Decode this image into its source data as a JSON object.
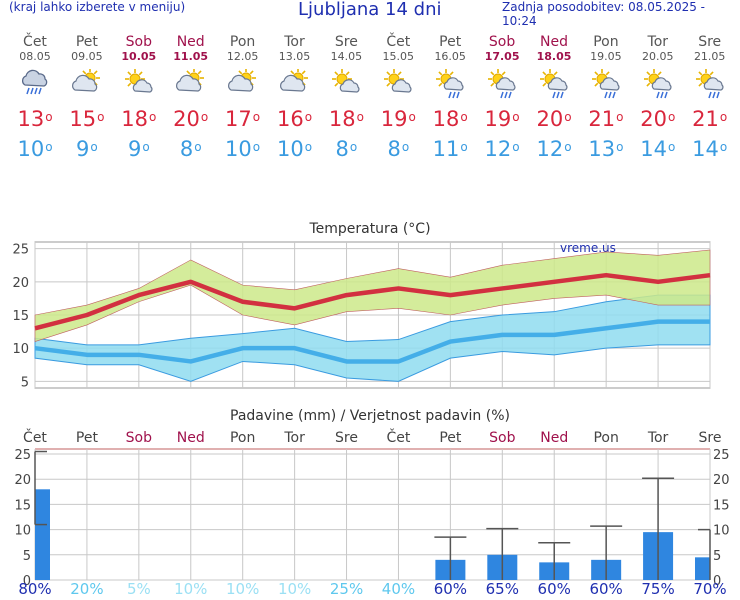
{
  "header": {
    "menu_hint": "(kraj lahko izberete v meniju)",
    "title": "Ljubljana 14 dni",
    "updated": "Zadnja posodobitev: 08.05.2025 - 10:24"
  },
  "days": [
    {
      "name": "Čet",
      "date": "08.05",
      "weekend": false,
      "icon": "rain-cloud-icon",
      "tmax": "13",
      "tmin": "10"
    },
    {
      "name": "Pet",
      "date": "09.05",
      "weekend": false,
      "icon": "partly-cloudy-icon",
      "tmax": "15",
      "tmin": "9"
    },
    {
      "name": "Sob",
      "date": "10.05",
      "weekend": true,
      "icon": "sun-cloud-icon",
      "tmax": "18",
      "tmin": "9"
    },
    {
      "name": "Ned",
      "date": "11.05",
      "weekend": true,
      "icon": "partly-cloudy-icon",
      "tmax": "20",
      "tmin": "8"
    },
    {
      "name": "Pon",
      "date": "12.05",
      "weekend": false,
      "icon": "partly-cloudy-icon",
      "tmax": "17",
      "tmin": "10"
    },
    {
      "name": "Tor",
      "date": "13.05",
      "weekend": false,
      "icon": "partly-cloudy-icon",
      "tmax": "16",
      "tmin": "10"
    },
    {
      "name": "Sre",
      "date": "14.05",
      "weekend": false,
      "icon": "sun-cloud-icon",
      "tmax": "18",
      "tmin": "8"
    },
    {
      "name": "Čet",
      "date": "15.05",
      "weekend": false,
      "icon": "sun-cloud-icon",
      "tmax": "19",
      "tmin": "8"
    },
    {
      "name": "Pet",
      "date": "16.05",
      "weekend": false,
      "icon": "sun-rain-icon",
      "tmax": "18",
      "tmin": "11"
    },
    {
      "name": "Sob",
      "date": "17.05",
      "weekend": true,
      "icon": "sun-rain-icon",
      "tmax": "19",
      "tmin": "12"
    },
    {
      "name": "Ned",
      "date": "18.05",
      "weekend": true,
      "icon": "sun-rain-icon",
      "tmax": "20",
      "tmin": "12"
    },
    {
      "name": "Pon",
      "date": "19.05",
      "weekend": false,
      "icon": "sun-rain-icon",
      "tmax": "21",
      "tmin": "13"
    },
    {
      "name": "Tor",
      "date": "20.05",
      "weekend": false,
      "icon": "sun-rain-icon",
      "tmax": "20",
      "tmin": "14"
    },
    {
      "name": "Sre",
      "date": "21.05",
      "weekend": false,
      "icon": "sun-rain-icon",
      "tmax": "21",
      "tmin": "14"
    }
  ],
  "colors": {
    "title_blue": "#1f2fb0",
    "weekend": "#a0124c",
    "max_line": "#d23040",
    "max_band": "#cde98a",
    "min_line": "#44aee8",
    "min_band": "#8fdcf0",
    "precip_bar": "#2f86e0",
    "grid": "#c8c8c8"
  },
  "chart_data": [
    {
      "type": "line",
      "title": "Temperatura (°C)",
      "watermark": "vreme.us",
      "categories": [
        "Čet",
        "Pet",
        "Sob",
        "Ned",
        "Pon",
        "Tor",
        "Sre",
        "Čet",
        "Pet",
        "Sob",
        "Ned",
        "Pon",
        "Tor",
        "Sre"
      ],
      "ylim": [
        4,
        26
      ],
      "yticks": [
        5,
        10,
        15,
        20,
        25
      ],
      "grid": true,
      "series": [
        {
          "values": [
            13,
            15,
            18,
            20,
            17,
            16,
            18,
            19,
            18,
            19,
            20,
            21,
            20,
            21
          ],
          "band_low": [
            11,
            13.5,
            17,
            19.5,
            15,
            13.5,
            15.5,
            16,
            15,
            16.5,
            17.5,
            18,
            16.5,
            16.5
          ],
          "band_high": [
            15,
            16.5,
            19,
            23.3,
            19.5,
            18.8,
            20.5,
            22,
            20.7,
            22.5,
            23.5,
            24.5,
            24,
            24.8
          ]
        },
        {
          "values": [
            10,
            9,
            9,
            8,
            10,
            10,
            8,
            8,
            11,
            12,
            12,
            13,
            14,
            14
          ],
          "band_low": [
            8.5,
            7.5,
            7.5,
            5,
            8,
            7.5,
            5.5,
            5,
            8.5,
            9.5,
            9,
            10,
            10.5,
            10.5
          ],
          "band_high": [
            11.5,
            10.5,
            10.5,
            11.5,
            12.2,
            13,
            11,
            11.3,
            14,
            15,
            15.5,
            17,
            18,
            18
          ]
        }
      ]
    },
    {
      "type": "bar",
      "title": "Padavine (mm) / Verjetnost padavin (%)",
      "categories": [
        "Čet",
        "Pet",
        "Sob",
        "Ned",
        "Pon",
        "Tor",
        "Sre",
        "Čet",
        "Pet",
        "Sob",
        "Ned",
        "Pon",
        "Tor",
        "Sre"
      ],
      "ylim": [
        0,
        26
      ],
      "yticks": [
        0,
        5,
        10,
        15,
        20,
        25
      ],
      "grid": true,
      "values": [
        18,
        0,
        0,
        0,
        0,
        0,
        0,
        0,
        4,
        5,
        3.5,
        4,
        9.5,
        4.5
      ],
      "error_low": [
        11,
        0,
        0,
        0,
        0,
        0,
        0,
        0,
        0,
        0,
        0,
        0,
        0,
        0
      ],
      "error_high": [
        25.5,
        0,
        0,
        0,
        0,
        0,
        0,
        0,
        8.5,
        10.2,
        7.4,
        10.7,
        20.2,
        10
      ],
      "probability": [
        "80%",
        "20%",
        "5%",
        "10%",
        "10%",
        "10%",
        "25%",
        "40%",
        "60%",
        "65%",
        "60%",
        "60%",
        "75%",
        "70%"
      ],
      "probability_colors": [
        "#1f2fb0",
        "#5ec8ee",
        "#9be0f4",
        "#9be0f4",
        "#9be0f4",
        "#9be0f4",
        "#5ec8ee",
        "#5ec8ee",
        "#1f2fb0",
        "#1f2fb0",
        "#1f2fb0",
        "#1f2fb0",
        "#1f2fb0",
        "#1f2fb0"
      ]
    }
  ]
}
